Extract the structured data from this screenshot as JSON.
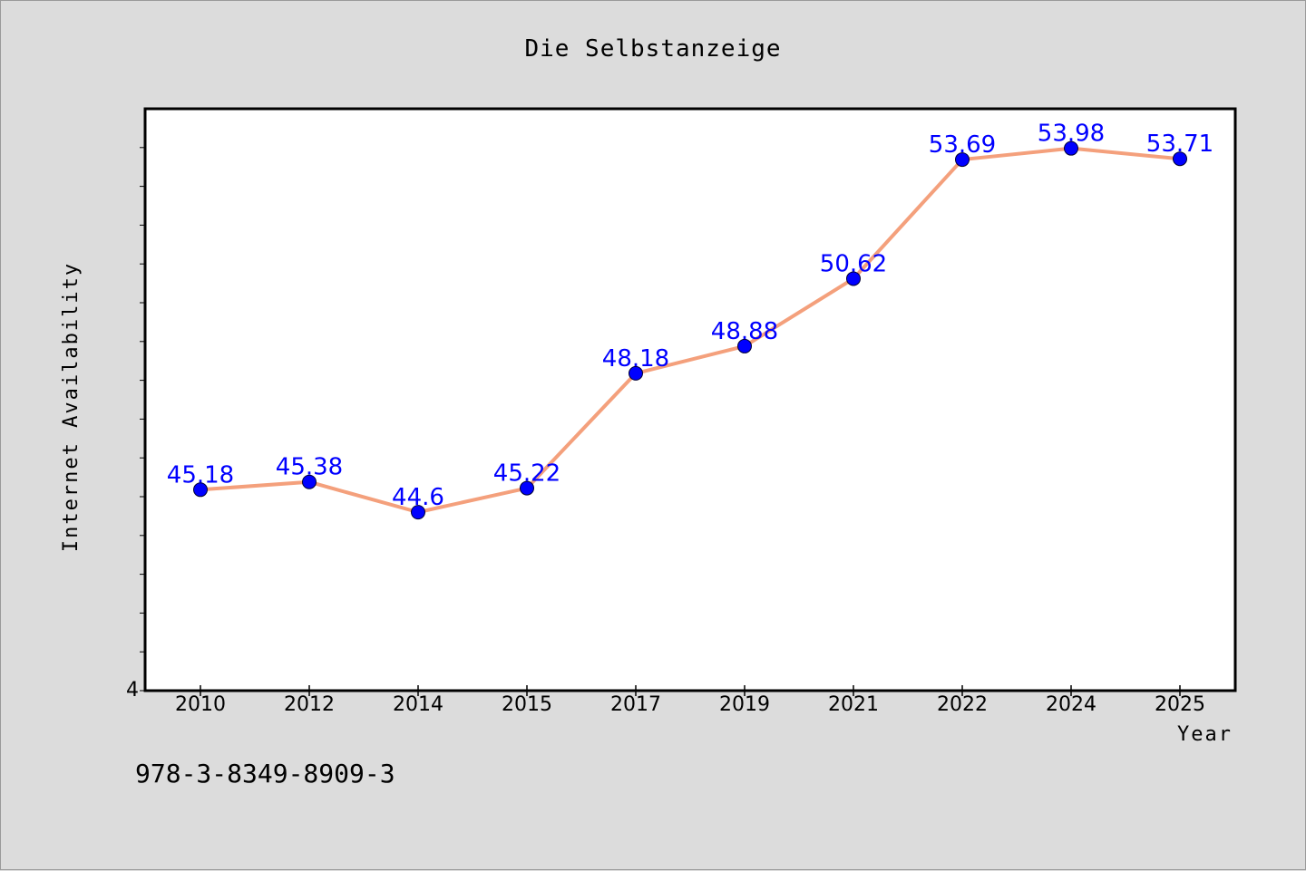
{
  "chart_data": {
    "type": "line",
    "title": "Die Selbstanzeige",
    "xlabel": "Year",
    "ylabel": "Internet Availability",
    "categories": [
      "2010",
      "2012",
      "2014",
      "2015",
      "2017",
      "2019",
      "2021",
      "2022",
      "2024",
      "2025"
    ],
    "series": [
      {
        "values": [
          45.18,
          45.38,
          44.6,
          45.22,
          48.18,
          48.88,
          50.62,
          53.69,
          53.98,
          53.71
        ],
        "data_labels": [
          "45.18",
          "45.38",
          "44.6",
          "45.22",
          "48.18",
          "48.88",
          "50.62",
          "53.69",
          "53.98",
          "53.71"
        ],
        "line_color": "#f4a07c",
        "marker_color": "#0000ff"
      }
    ],
    "ylim": [
      40,
      55
    ],
    "y_tick_label": "4",
    "grid": false,
    "legend": "none"
  },
  "footer": {
    "isbn": "978-3-8349-8909-3"
  },
  "colors": {
    "background": "#dcdcdc",
    "plot_area": "#ffffff",
    "line": "#f4a07c",
    "marker": "#0000ff",
    "data_label": "#0000ff"
  }
}
